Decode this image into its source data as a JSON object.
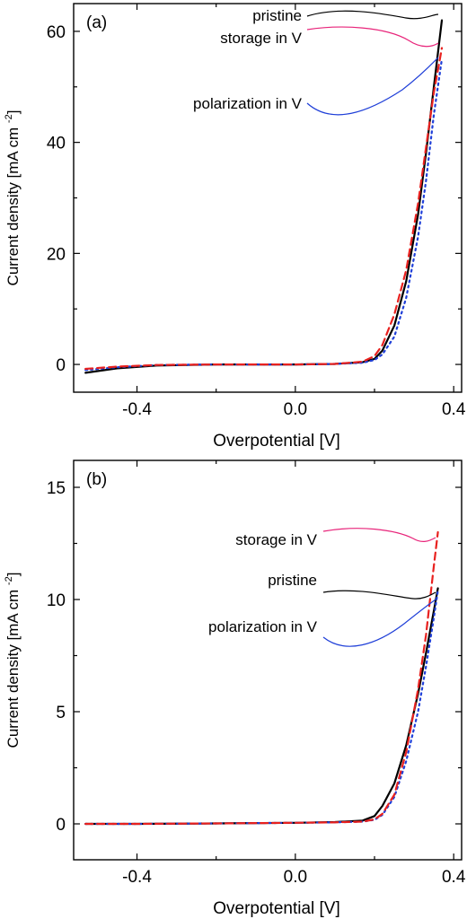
{
  "chart_data": [
    {
      "type": "line",
      "panel_label": "(a)",
      "xlabel": "Overpotential [V]",
      "ylabel": "Current density [mA cm",
      "ylabel_sup": "-2",
      "ylabel_suffix": "]",
      "xlim": [
        -0.56,
        0.42
      ],
      "ylim": [
        -5,
        65
      ],
      "xticks": [
        -0.4,
        0.0,
        0.4
      ],
      "xtick_labels": [
        "-0.4",
        "0.0",
        "0.4"
      ],
      "yticks": [
        0,
        20,
        40,
        60
      ],
      "ytick_labels": [
        "0",
        "20",
        "40",
        "60"
      ],
      "grid": false,
      "annotations": [
        "pristine",
        "storage in V",
        "polarization in V"
      ],
      "series": [
        {
          "name": "pristine",
          "color": "#000000",
          "style": "solid",
          "x": [
            -0.53,
            -0.45,
            -0.35,
            -0.2,
            0.0,
            0.1,
            0.17,
            0.2,
            0.22,
            0.25,
            0.28,
            0.31,
            0.33,
            0.35,
            0.37
          ],
          "y": [
            -1.5,
            -0.7,
            -0.2,
            0.0,
            0.0,
            0.1,
            0.4,
            1.0,
            2.5,
            7.0,
            15.0,
            27.0,
            38.0,
            50.0,
            62.0
          ]
        },
        {
          "name": "storage in V",
          "color": "#e8211f",
          "style": "dashed",
          "x": [
            -0.53,
            -0.45,
            -0.35,
            -0.2,
            0.0,
            0.1,
            0.17,
            0.2,
            0.22,
            0.25,
            0.28,
            0.31,
            0.33,
            0.35,
            0.37
          ],
          "y": [
            -0.8,
            -0.4,
            -0.1,
            0.0,
            0.0,
            0.1,
            0.5,
            1.5,
            3.5,
            9.0,
            17.0,
            29.0,
            39.0,
            49.0,
            57.0
          ]
        },
        {
          "name": "polarization in V",
          "color": "#1f3fd8",
          "style": "dotted",
          "x": [
            -0.53,
            -0.45,
            -0.35,
            -0.2,
            0.0,
            0.1,
            0.17,
            0.2,
            0.22,
            0.25,
            0.28,
            0.31,
            0.33,
            0.35,
            0.37
          ],
          "y": [
            -1.0,
            -0.5,
            -0.1,
            0.0,
            0.0,
            0.1,
            0.3,
            0.8,
            1.8,
            5.0,
            12.0,
            23.0,
            33.0,
            45.0,
            55.0
          ]
        }
      ]
    },
    {
      "type": "line",
      "panel_label": "(b)",
      "xlabel": "Overpotential [V]",
      "ylabel": "Current density [mA cm",
      "ylabel_sup": "-2",
      "ylabel_suffix": "]",
      "xlim": [
        -0.56,
        0.42
      ],
      "ylim": [
        -1.6,
        16.2
      ],
      "xticks": [
        -0.4,
        0.0,
        0.4
      ],
      "xtick_labels": [
        "-0.4",
        "0.0",
        "0.4"
      ],
      "yticks": [
        0,
        5,
        10,
        15
      ],
      "ytick_labels": [
        "0",
        "5",
        "10",
        "15"
      ],
      "grid": false,
      "annotations": [
        "storage in V",
        "pristine",
        "polarization in V"
      ],
      "series": [
        {
          "name": "pristine",
          "color": "#000000",
          "style": "solid",
          "x": [
            -0.53,
            -0.4,
            -0.2,
            0.0,
            0.1,
            0.17,
            0.2,
            0.22,
            0.25,
            0.28,
            0.31,
            0.33,
            0.35,
            0.36
          ],
          "y": [
            0.0,
            0.0,
            0.02,
            0.05,
            0.08,
            0.15,
            0.35,
            0.8,
            1.8,
            3.5,
            5.8,
            7.6,
            9.5,
            10.5
          ]
        },
        {
          "name": "storage in V",
          "color": "#e8211f",
          "style": "dashed",
          "x": [
            -0.53,
            -0.4,
            -0.2,
            0.0,
            0.1,
            0.17,
            0.2,
            0.22,
            0.25,
            0.28,
            0.31,
            0.33,
            0.35,
            0.36
          ],
          "y": [
            0.0,
            0.0,
            0.02,
            0.05,
            0.07,
            0.1,
            0.2,
            0.45,
            1.3,
            3.2,
            6.0,
            8.4,
            11.5,
            13.0
          ]
        },
        {
          "name": "polarization in V",
          "color": "#1f3fd8",
          "style": "dotted",
          "x": [
            -0.53,
            -0.4,
            -0.2,
            0.0,
            0.1,
            0.17,
            0.2,
            0.22,
            0.25,
            0.28,
            0.31,
            0.33,
            0.35,
            0.36
          ],
          "y": [
            0.0,
            0.0,
            0.02,
            0.05,
            0.07,
            0.1,
            0.18,
            0.4,
            1.2,
            2.8,
            5.0,
            7.0,
            9.2,
            10.4
          ]
        }
      ]
    }
  ]
}
